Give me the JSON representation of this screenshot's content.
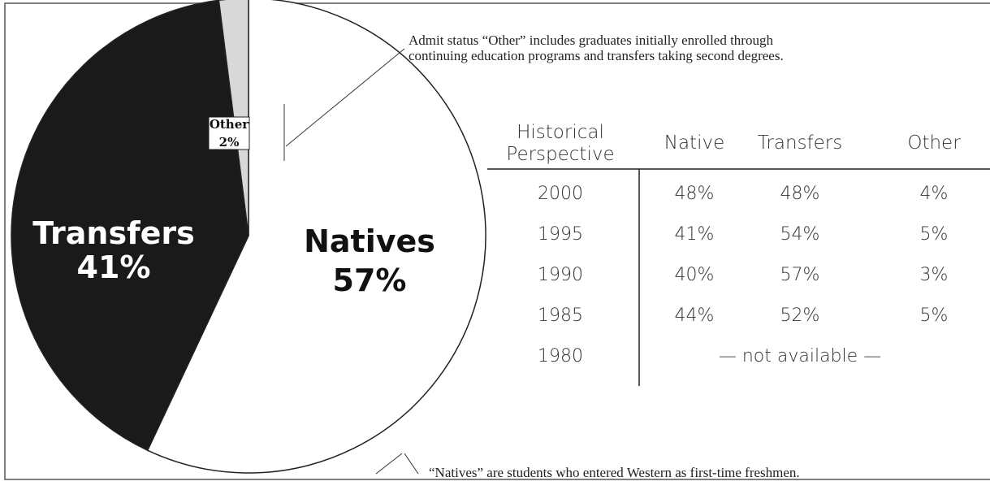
{
  "chart_data": {
    "type": "pie",
    "categories": [
      "Natives",
      "Transfers",
      "Other"
    ],
    "values": [
      57,
      41,
      2
    ],
    "value_labels": [
      "57%",
      "41%",
      "2%"
    ],
    "colors": [
      "#ffffff",
      "#1a1a1a",
      "#d8d8d8"
    ],
    "annotations": [
      "Admit status “Other” includes graduates initially enrolled through continuing education programs and transfers taking second degrees.",
      "“Natives” are students who entered Western as first-time freshmen."
    ]
  },
  "table": {
    "header": [
      "Historical Perspective",
      "Native",
      "Transfers",
      "Other"
    ],
    "rows": [
      [
        "2000",
        "48%",
        "48%",
        "4%"
      ],
      [
        "1995",
        "41%",
        "54%",
        "5%"
      ],
      [
        "1990",
        "40%",
        "57%",
        "3%"
      ],
      [
        "1985",
        "44%",
        "52%",
        "5%"
      ],
      [
        "1980",
        "— not available —"
      ]
    ]
  }
}
